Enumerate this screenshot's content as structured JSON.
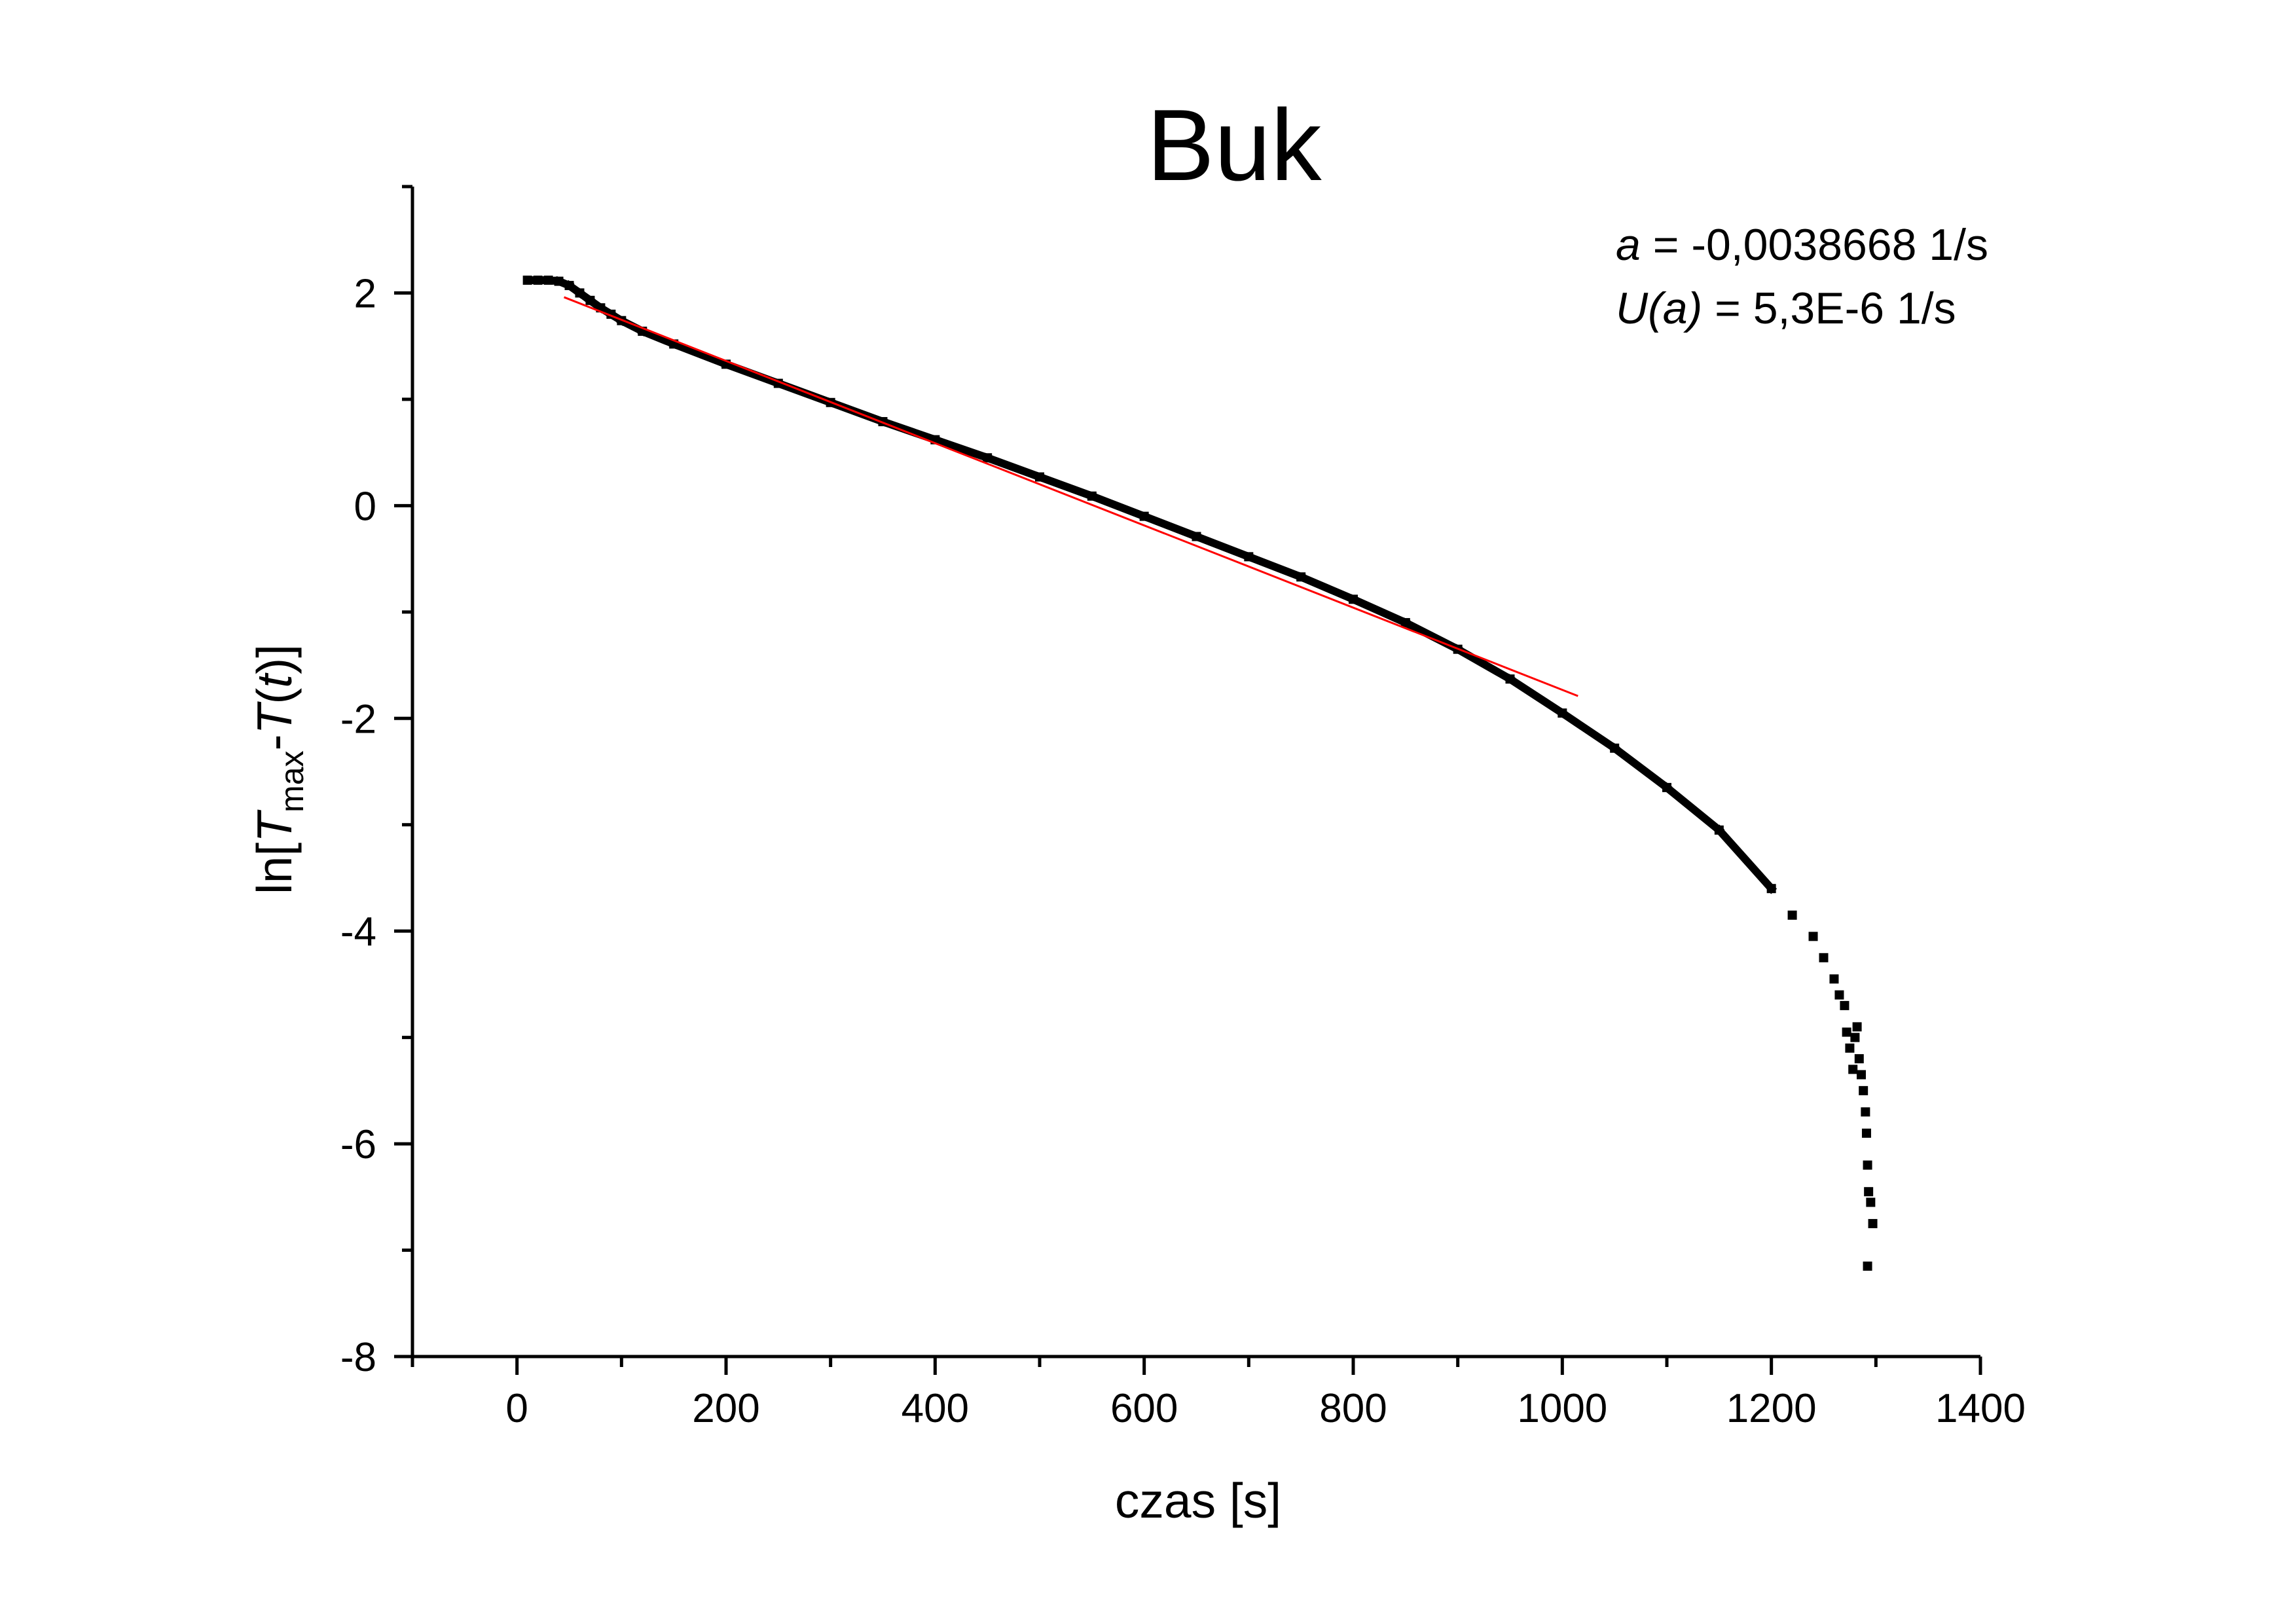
{
  "chart_data": {
    "type": "scatter",
    "title": "Buk",
    "xlabel": "czas [s]",
    "ylabel": {
      "prefix": "ln[",
      "t_symbol": "T",
      "t_subscript": "max",
      "middle": "-",
      "t2_symbol": "T",
      "paren_open": "(",
      "t_var": "t",
      "suffix": ")]"
    },
    "xlim": [
      -100,
      1400
    ],
    "ylim": [
      -8,
      3
    ],
    "xticks": [
      0,
      200,
      400,
      600,
      800,
      1000,
      1200,
      1400
    ],
    "xtick_labels": [
      "0",
      "200",
      "400",
      "600",
      "800",
      "1000",
      "1200",
      "1400"
    ],
    "yticks": [
      -8,
      -6,
      -4,
      -2,
      0,
      2
    ],
    "ytick_labels": [
      "-8",
      "-6",
      "-4",
      "-2",
      "0",
      "2"
    ],
    "grid": false,
    "annotation": {
      "line1_symbol": "a",
      "line1_text": " = -0,0038668 1/s",
      "line2_symbol": "U(a)",
      "line2_text": " = 5,3E-6 1/s"
    },
    "fit_line": {
      "color": "#ff0000",
      "slope": -0.0038668,
      "x": [
        45,
        1015
      ],
      "y": [
        1.96,
        -1.79
      ]
    },
    "series": [
      {
        "color": "#000000",
        "x": [
          10,
          20,
          30,
          40,
          50,
          60,
          70,
          80,
          90,
          100,
          120,
          150,
          200,
          250,
          300,
          350,
          400,
          450,
          500,
          550,
          600,
          650,
          700,
          750,
          800,
          850,
          900,
          950,
          1000,
          1050,
          1100,
          1150,
          1200,
          1220,
          1240,
          1250,
          1260,
          1265,
          1270,
          1272,
          1275,
          1278,
          1280,
          1282,
          1284,
          1286,
          1288,
          1290,
          1291,
          1292,
          1293,
          1295,
          1297,
          1292
        ],
        "y": [
          2.12,
          2.12,
          2.12,
          2.11,
          2.07,
          2.0,
          1.93,
          1.86,
          1.8,
          1.74,
          1.64,
          1.52,
          1.33,
          1.15,
          0.97,
          0.79,
          0.62,
          0.45,
          0.27,
          0.09,
          -0.1,
          -0.29,
          -0.48,
          -0.67,
          -0.88,
          -1.1,
          -1.35,
          -1.63,
          -1.95,
          -2.28,
          -2.65,
          -3.05,
          -3.6,
          -3.85,
          -4.05,
          -4.25,
          -4.45,
          -4.6,
          -4.7,
          -4.95,
          -5.1,
          -5.3,
          -5.0,
          -4.9,
          -5.2,
          -5.35,
          -5.5,
          -5.7,
          -5.9,
          -6.2,
          -6.45,
          -6.55,
          -6.75,
          -7.15
        ]
      }
    ]
  }
}
